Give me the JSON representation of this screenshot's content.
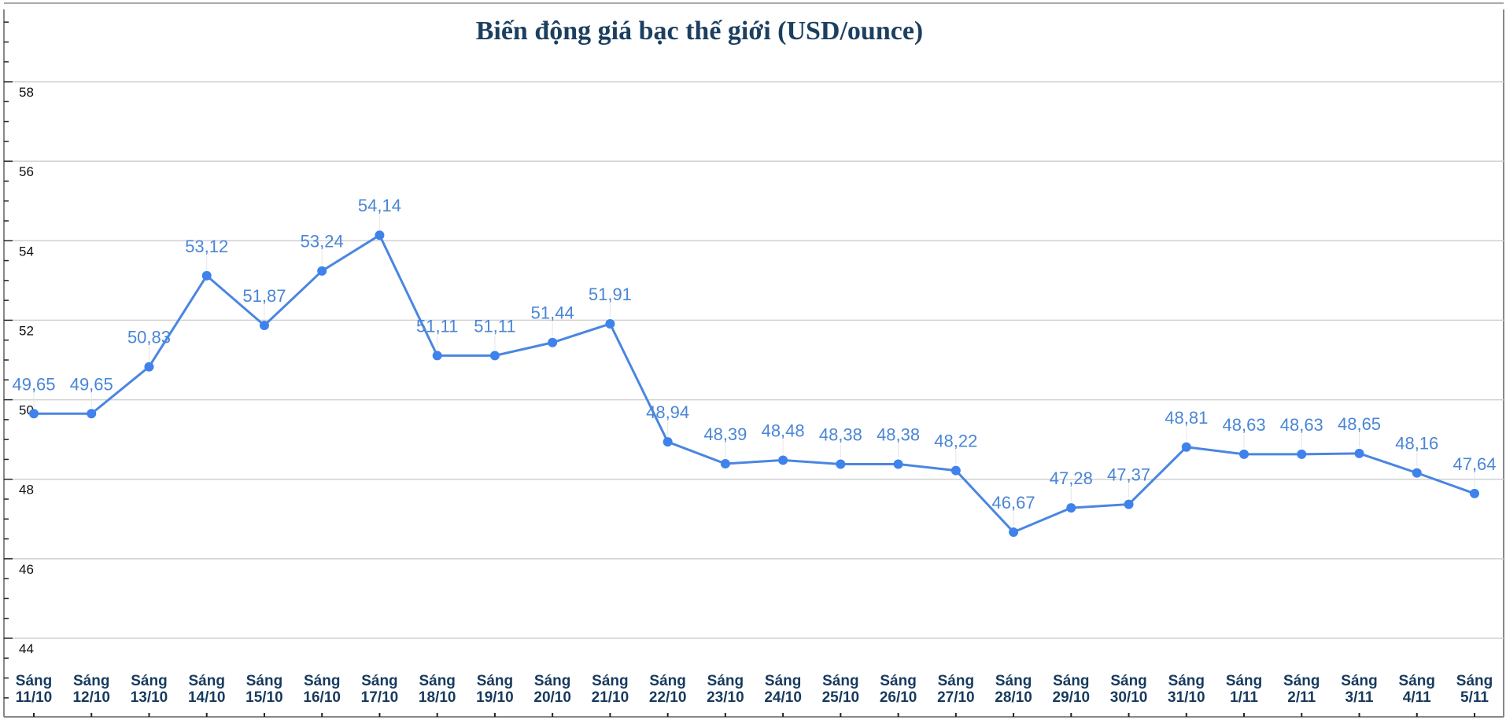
{
  "chart_data": {
    "type": "line",
    "title": "Biến động giá bạc thế giới (USD/ounce)",
    "xlabel": "",
    "ylabel": "",
    "ylim": [
      44,
      58
    ],
    "yticks": [
      44,
      46,
      48,
      50,
      52,
      54,
      56,
      58
    ],
    "grid": true,
    "categories": [
      [
        "Sáng",
        "11/10"
      ],
      [
        "Sáng",
        "12/10"
      ],
      [
        "Sáng",
        "13/10"
      ],
      [
        "Sáng",
        "14/10"
      ],
      [
        "Sáng",
        "15/10"
      ],
      [
        "Sáng",
        "16/10"
      ],
      [
        "Sáng",
        "17/10"
      ],
      [
        "Sáng",
        "18/10"
      ],
      [
        "Sáng",
        "19/10"
      ],
      [
        "Sáng",
        "20/10"
      ],
      [
        "Sáng",
        "21/10"
      ],
      [
        "Sáng",
        "22/10"
      ],
      [
        "Sáng",
        "23/10"
      ],
      [
        "Sáng",
        "24/10"
      ],
      [
        "Sáng",
        "25/10"
      ],
      [
        "Sáng",
        "26/10"
      ],
      [
        "Sáng",
        "27/10"
      ],
      [
        "Sáng",
        "28/10"
      ],
      [
        "Sáng",
        "29/10"
      ],
      [
        "Sáng",
        "30/10"
      ],
      [
        "Sáng",
        "31/10"
      ],
      [
        "Sáng",
        "1/11"
      ],
      [
        "Sáng",
        "2/11"
      ],
      [
        "Sáng",
        "3/11"
      ],
      [
        "Sáng",
        "4/11"
      ],
      [
        "Sáng",
        "5/11"
      ]
    ],
    "values": [
      49.65,
      49.65,
      50.83,
      53.12,
      51.87,
      53.24,
      54.14,
      51.11,
      51.11,
      51.44,
      51.91,
      48.94,
      48.39,
      48.48,
      48.38,
      48.38,
      48.22,
      46.67,
      47.28,
      47.37,
      48.81,
      48.63,
      48.63,
      48.65,
      48.16,
      47.64
    ],
    "data_labels": [
      "49,65",
      "49,65",
      "50,83",
      "53,12",
      "51,87",
      "53,24",
      "54,14",
      "51,11",
      "51,11",
      "51,44",
      "51,91",
      "48,94",
      "48,39",
      "48,48",
      "48,38",
      "48,38",
      "48,22",
      "46,67",
      "47,28",
      "47,37",
      "48,81",
      "48,63",
      "48,63",
      "48,65",
      "48,16",
      "47,64"
    ],
    "colors": {
      "line": "#4a86e0",
      "marker": "#3f82ec",
      "label": "#4a86d6",
      "title": "#1c3f60",
      "xtick": "#173a5e",
      "grid": "#d0d0d0"
    }
  }
}
